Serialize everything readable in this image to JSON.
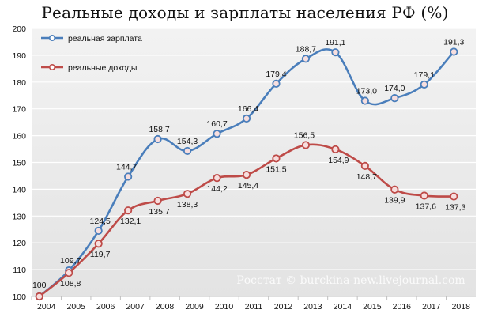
{
  "title": "Реальные доходы и зарплаты населения РФ (%)",
  "watermark": "Росстат © burckina-new.livejournal.com",
  "chart_data": {
    "type": "line",
    "title": "Реальные доходы и зарплаты населения РФ (%)",
    "xlabel": "",
    "ylabel": "",
    "categories": [
      "2004",
      "2005",
      "2006",
      "2007",
      "2008",
      "2009",
      "2010",
      "2011",
      "2012",
      "2013",
      "2014",
      "2015",
      "2016",
      "2017",
      "2018"
    ],
    "ylim": [
      100,
      200
    ],
    "yticks": [
      "100",
      "110",
      "120",
      "130",
      "140",
      "150",
      "160",
      "170",
      "180",
      "190",
      "200"
    ],
    "grid": "horizontal",
    "legend_position": "top-left",
    "series": [
      {
        "name": "реальная зарплата",
        "color": "#4a7ebb",
        "values": [
          100,
          109.7,
          124.5,
          144.7,
          158.7,
          154.3,
          160.7,
          166.4,
          179.4,
          188.7,
          191.1,
          173.0,
          174.0,
          179.1,
          191.3
        ],
        "labels": [
          "",
          "109,7",
          "124,5",
          "144,7",
          "158,7",
          "154,3",
          "160,7",
          "166,4",
          "179,4",
          "188,7",
          "191,1",
          "173,0",
          "174,0",
          "179,1",
          "191,3"
        ]
      },
      {
        "name": "реальные доходы",
        "color": "#be4b48",
        "values": [
          100,
          108.8,
          119.7,
          132.1,
          135.7,
          138.3,
          144.2,
          145.4,
          151.5,
          156.5,
          154.9,
          148.7,
          139.9,
          137.6,
          137.3
        ],
        "labels": [
          "100",
          "108,8",
          "119,7",
          "132,1",
          "135,7",
          "138,3",
          "144,2",
          "145,4",
          "151,5",
          "156,5",
          "154,9",
          "148,7",
          "139,9",
          "137,6",
          "137,3"
        ]
      }
    ]
  }
}
